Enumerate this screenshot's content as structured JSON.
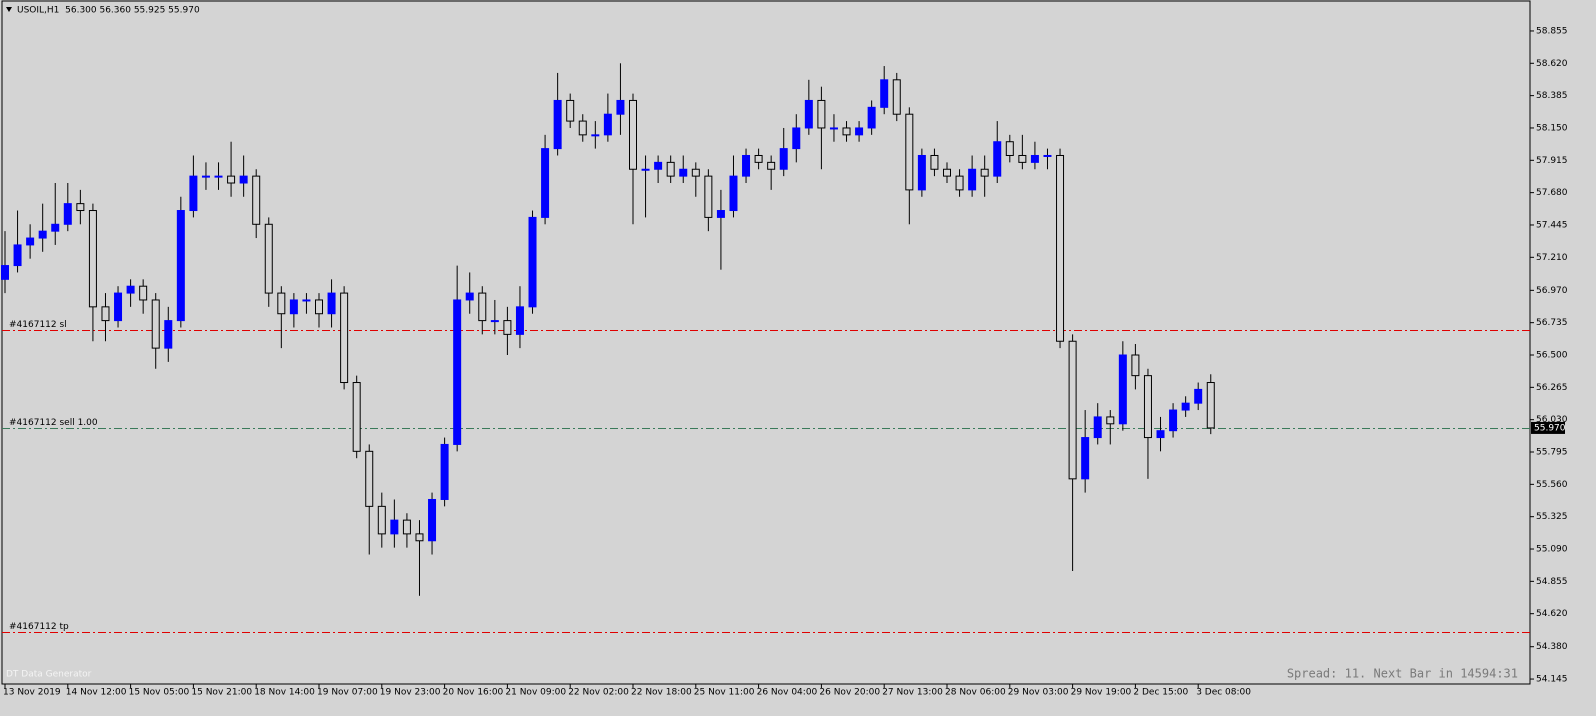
{
  "chart_data": {
    "type": "candlestick",
    "title": "USOIL,H1  56.300 56.360 55.925 55.970",
    "categories": [
      "13 Nov 2019",
      null,
      null,
      null,
      null,
      "14 Nov 12:00",
      null,
      null,
      null,
      null,
      "15 Nov 05:00",
      null,
      null,
      null,
      null,
      "15 Nov 21:00",
      null,
      null,
      null,
      null,
      "18 Nov 14:00",
      null,
      null,
      null,
      null,
      "19 Nov 07:00",
      null,
      null,
      null,
      null,
      "19 Nov 23:00",
      null,
      null,
      null,
      null,
      "20 Nov 16:00",
      null,
      null,
      null,
      null,
      "21 Nov 09:00",
      null,
      null,
      null,
      null,
      "22 Nov 02:00",
      null,
      null,
      null,
      null,
      "22 Nov 18:00",
      null,
      null,
      null,
      null,
      "25 Nov 11:00",
      null,
      null,
      null,
      null,
      "26 Nov 04:00",
      null,
      null,
      null,
      null,
      "26 Nov 20:00",
      null,
      null,
      null,
      null,
      "27 Nov 13:00",
      null,
      null,
      null,
      null,
      "28 Nov 06:00",
      null,
      null,
      null,
      null,
      "29 Nov 03:00",
      null,
      null,
      null,
      null,
      "29 Nov 19:00",
      null,
      null,
      null,
      null,
      "2 Dec 15:00",
      null,
      null,
      null,
      null,
      "3 Dec 08:00",
      null
    ],
    "open": [
      57.05,
      57.15,
      57.3,
      57.35,
      57.4,
      57.45,
      57.6,
      57.55,
      56.85,
      56.75,
      56.95,
      57.0,
      56.9,
      56.55,
      56.75,
      57.55,
      57.8,
      57.8,
      57.8,
      57.75,
      57.8,
      57.45,
      56.95,
      56.8,
      56.9,
      56.9,
      56.8,
      56.95,
      56.3,
      55.8,
      55.4,
      55.2,
      55.3,
      55.2,
      55.15,
      55.45,
      55.85,
      56.9,
      56.95,
      56.75,
      56.75,
      56.65,
      56.85,
      57.5,
      58.0,
      58.35,
      58.2,
      58.1,
      58.1,
      58.25,
      58.35,
      57.85,
      57.85,
      57.9,
      57.8,
      57.85,
      57.8,
      57.5,
      57.55,
      57.8,
      57.95,
      57.9,
      57.85,
      58.0,
      58.15,
      58.35,
      58.15,
      58.15,
      58.1,
      58.15,
      58.3,
      58.5,
      58.25,
      57.7,
      57.95,
      57.85,
      57.8,
      57.7,
      57.85,
      57.8,
      58.05,
      57.95,
      57.9,
      57.95,
      57.95,
      56.6,
      55.6,
      55.9,
      56.05,
      56.0,
      56.5,
      56.35,
      55.9,
      55.95,
      56.1,
      56.15,
      56.3
    ],
    "high": [
      57.4,
      57.55,
      57.45,
      57.6,
      57.75,
      57.75,
      57.7,
      57.6,
      56.95,
      57.0,
      57.05,
      57.05,
      56.95,
      56.85,
      57.65,
      57.95,
      57.9,
      57.9,
      58.05,
      57.95,
      57.85,
      57.5,
      57.0,
      56.95,
      56.95,
      56.95,
      57.05,
      57.0,
      56.35,
      55.85,
      55.5,
      55.45,
      55.35,
      55.3,
      55.5,
      55.9,
      57.15,
      57.1,
      57.0,
      56.9,
      56.85,
      57.0,
      57.55,
      58.1,
      58.55,
      58.4,
      58.25,
      58.2,
      58.4,
      58.62,
      58.4,
      57.95,
      57.95,
      57.95,
      57.95,
      57.9,
      57.85,
      57.7,
      57.95,
      58.0,
      58.0,
      57.95,
      58.15,
      58.25,
      58.5,
      58.45,
      58.25,
      58.2,
      58.2,
      58.35,
      58.6,
      58.55,
      58.3,
      58.0,
      58.0,
      57.9,
      57.85,
      57.95,
      57.95,
      58.2,
      58.1,
      58.1,
      58.05,
      58.0,
      58.0,
      56.65,
      56.1,
      56.15,
      56.1,
      56.6,
      56.58,
      56.4,
      56.05,
      56.15,
      56.2,
      56.3,
      56.36
    ],
    "low": [
      56.95,
      57.1,
      57.2,
      57.25,
      57.3,
      57.4,
      57.45,
      56.6,
      56.6,
      56.7,
      56.85,
      56.8,
      56.4,
      56.45,
      56.7,
      57.5,
      57.7,
      57.7,
      57.65,
      57.65,
      57.35,
      56.85,
      56.55,
      56.7,
      56.8,
      56.7,
      56.7,
      56.25,
      55.75,
      55.05,
      55.1,
      55.1,
      55.1,
      54.75,
      55.05,
      55.4,
      55.8,
      56.8,
      56.65,
      56.65,
      56.5,
      56.55,
      56.8,
      57.45,
      57.95,
      58.15,
      58.05,
      58.0,
      58.05,
      58.1,
      57.45,
      57.5,
      57.75,
      57.75,
      57.75,
      57.65,
      57.4,
      57.12,
      57.5,
      57.75,
      57.85,
      57.7,
      57.8,
      57.9,
      58.1,
      57.85,
      58.05,
      58.05,
      58.05,
      58.1,
      58.25,
      58.2,
      57.45,
      57.65,
      57.8,
      57.75,
      57.65,
      57.65,
      57.65,
      57.75,
      57.9,
      57.85,
      57.85,
      57.85,
      56.55,
      54.93,
      55.5,
      55.85,
      55.85,
      55.95,
      56.25,
      55.6,
      55.8,
      55.9,
      56.05,
      56.1,
      55.925
    ],
    "close": [
      57.15,
      57.3,
      57.35,
      57.4,
      57.45,
      57.6,
      57.55,
      56.85,
      56.75,
      56.95,
      57.0,
      56.9,
      56.55,
      56.75,
      57.55,
      57.8,
      57.8,
      57.8,
      57.75,
      57.8,
      57.45,
      56.95,
      56.8,
      56.9,
      56.9,
      56.8,
      56.95,
      56.3,
      55.8,
      55.4,
      55.2,
      55.3,
      55.2,
      55.15,
      55.45,
      55.85,
      56.9,
      56.95,
      56.75,
      56.75,
      56.65,
      56.85,
      57.5,
      58.0,
      58.35,
      58.2,
      58.1,
      58.1,
      58.25,
      58.35,
      57.85,
      57.85,
      57.9,
      57.8,
      57.85,
      57.8,
      57.5,
      57.55,
      57.8,
      57.95,
      57.9,
      57.85,
      58.0,
      58.15,
      58.35,
      58.15,
      58.15,
      58.1,
      58.15,
      58.3,
      58.5,
      58.25,
      57.7,
      57.95,
      57.85,
      57.8,
      57.7,
      57.85,
      57.8,
      58.05,
      57.95,
      57.9,
      57.95,
      57.95,
      56.6,
      55.6,
      55.9,
      56.05,
      56.0,
      56.5,
      56.35,
      55.9,
      55.95,
      56.1,
      56.15,
      56.25,
      55.97
    ],
    "up_color": "#0000ff",
    "down_color": "#d4d4d4",
    "wick_color": "#000000",
    "ylim": [
      54.109,
      59.08
    ],
    "yticks": [
      54.145,
      {
        "value": 54.38,
        "label": "54.380"
      },
      {
        "value": 54.62,
        "label": "54.620"
      },
      54.855,
      {
        "value": 55.09,
        "label": "55.090"
      },
      55.325,
      {
        "value": 55.56,
        "label": "55.560"
      },
      55.795,
      {
        "value": 56.03,
        "label": "56.030"
      },
      56.265,
      {
        "value": 56.5,
        "label": "56.500"
      },
      56.735,
      {
        "value": 56.97,
        "label": "56.970"
      },
      {
        "value": 57.21,
        "label": "57.210"
      },
      57.445,
      {
        "value": 57.68,
        "label": "57.680"
      },
      57.915,
      {
        "value": 58.15,
        "label": "58.150"
      },
      58.385,
      {
        "value": 58.62,
        "label": "58.620"
      },
      58.855
    ],
    "levels": [
      {
        "label": "#4167112 sl",
        "value": 56.68,
        "color": "#e00000"
      },
      {
        "label": "#4167112 sell 1.00",
        "value": 55.97,
        "color": "#3a7a5a"
      },
      {
        "label": "#4167112 tp",
        "value": 54.49,
        "color": "#e00000"
      }
    ],
    "last": {
      "value": 55.97,
      "label": "55.970"
    },
    "watermark": "DT Data Generator",
    "status": "Spread: 11. Next Bar in 14594:31"
  }
}
